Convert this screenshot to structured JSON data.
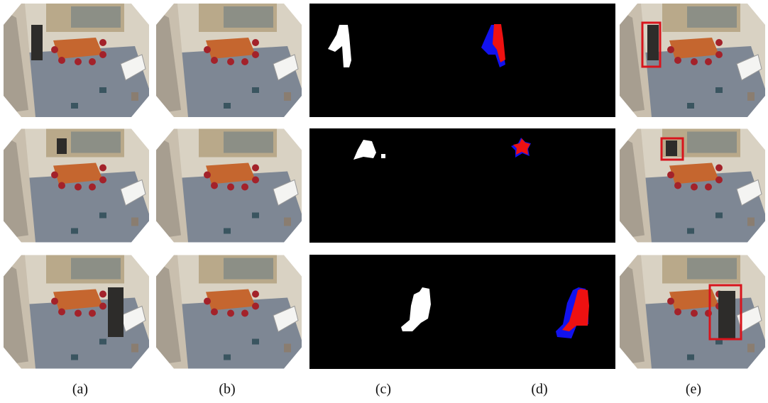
{
  "captions": [
    "(a)",
    "(b)",
    "(c)",
    "(d)",
    "(e)"
  ]
}
